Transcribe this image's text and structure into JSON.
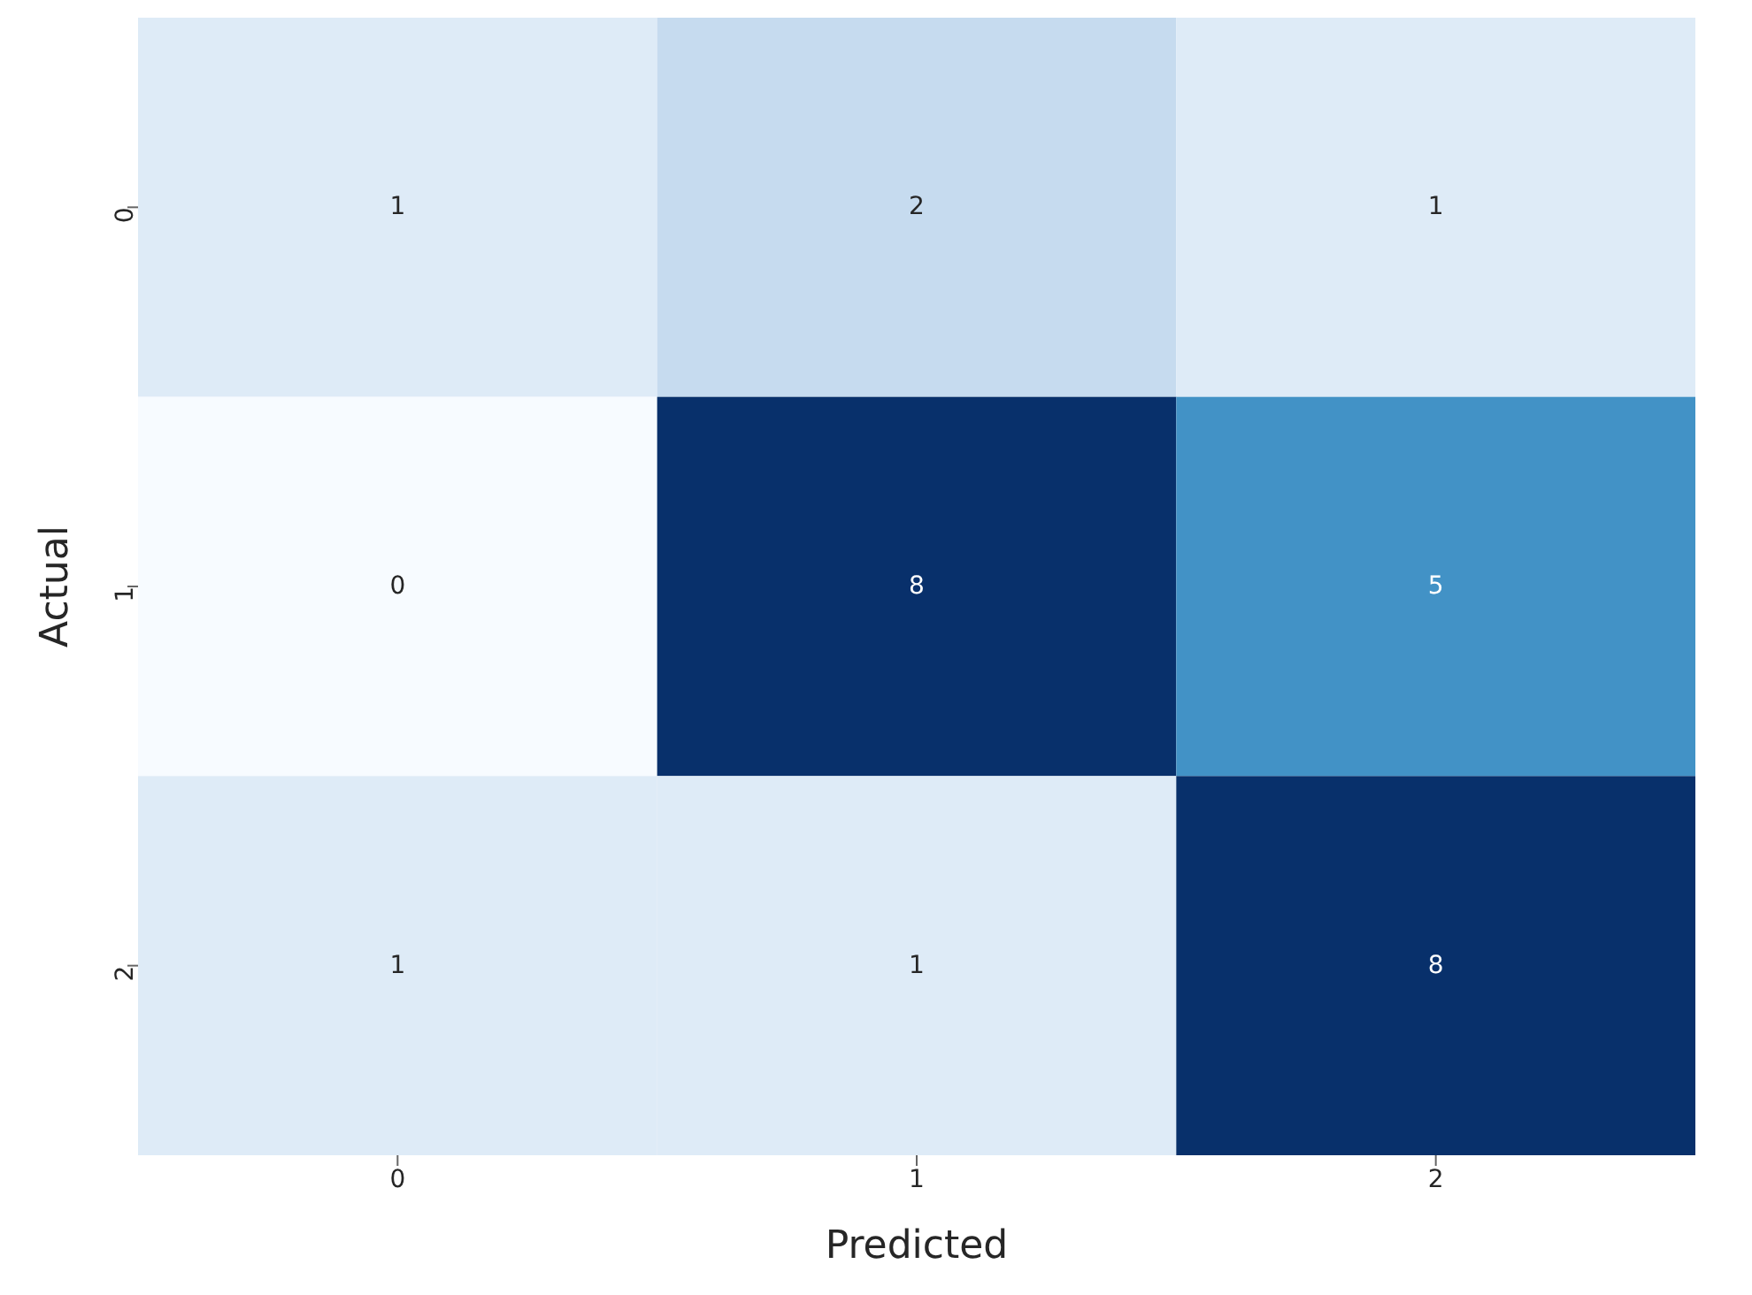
{
  "chart_data": {
    "type": "heatmap",
    "xlabel": "Predicted",
    "ylabel": "Actual",
    "categories": [
      "0",
      "1",
      "2"
    ],
    "y_categories": [
      "0",
      "1",
      "2"
    ],
    "cells": [
      [
        1,
        2,
        1
      ],
      [
        0,
        8,
        5
      ],
      [
        1,
        1,
        8
      ]
    ],
    "data_labels": true
  }
}
